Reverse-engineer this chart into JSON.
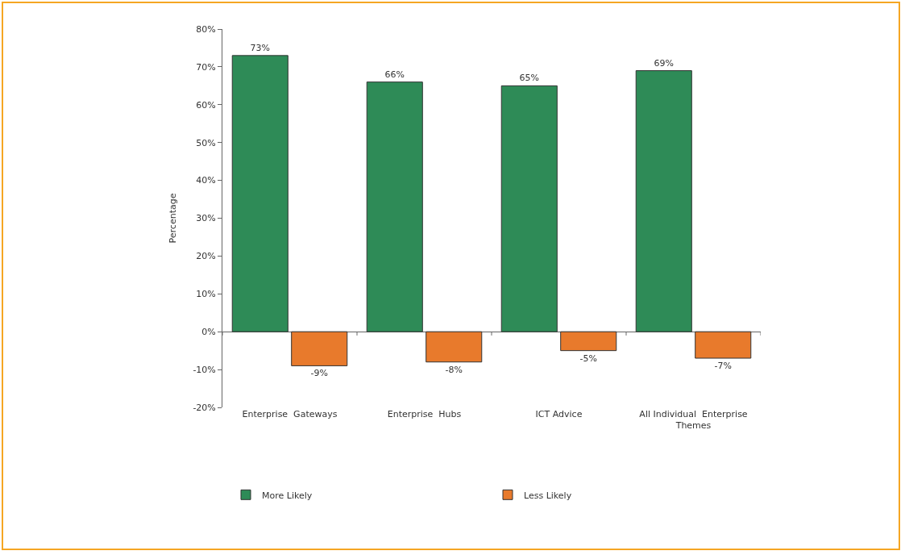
{
  "chart_data": {
    "type": "bar",
    "ylabel": "Percentage",
    "categories": [
      "Enterprise  Gateways",
      "Enterprise  Hubs",
      "ICT Advice",
      "All Individual  Enterprise Themes"
    ],
    "series": [
      {
        "name": "More Likely",
        "color": "#2e8b57",
        "values": [
          73,
          66,
          65,
          69
        ]
      },
      {
        "name": "Less Likely",
        "color": "#e87a2c",
        "values": [
          -9,
          -8,
          -5,
          -7
        ]
      }
    ],
    "value_labels": [
      [
        "73%",
        "66%",
        "65%",
        "69%"
      ],
      [
        "-9%",
        "-8%",
        "-5%",
        "-7%"
      ]
    ],
    "ylim": [
      -20,
      80
    ],
    "yticks": [
      {
        "value": -20,
        "label": "-20%"
      },
      {
        "value": -10,
        "label": "-10%"
      },
      {
        "value": 0,
        "label": "0%"
      },
      {
        "value": 10,
        "label": "10%"
      },
      {
        "value": 20,
        "label": "20%"
      },
      {
        "value": 30,
        "label": "30%"
      },
      {
        "value": 40,
        "label": "40%"
      },
      {
        "value": 50,
        "label": "50%"
      },
      {
        "value": 60,
        "label": "60%"
      },
      {
        "value": 70,
        "label": "70%"
      },
      {
        "value": 80,
        "label": "80%"
      }
    ],
    "legend": "bottom"
  }
}
